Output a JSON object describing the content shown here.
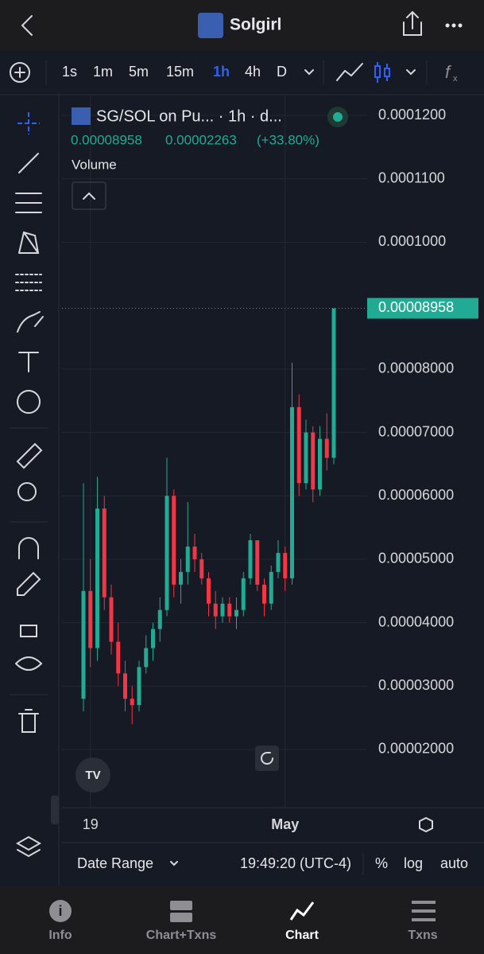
{
  "header": {
    "title": "Solgirl"
  },
  "toolbar": {
    "intervals": [
      "1s",
      "1m",
      "5m",
      "15m",
      "1h",
      "4h",
      "D"
    ]
  },
  "chart_info": {
    "symbol": "SG/SOL on Pu... · 1h · d...",
    "price": "0.00008958",
    "change": "0.00002263",
    "change_pct": "(+33.80%)",
    "study": "Volume"
  },
  "chart_data": {
    "type": "candlestick",
    "x": [
      null,
      "19",
      null,
      null,
      null,
      null,
      null,
      null,
      null,
      null,
      null,
      null,
      null,
      null,
      null,
      null,
      null,
      null,
      null,
      null,
      null,
      null,
      null,
      null,
      null,
      null,
      null,
      null,
      null,
      "May",
      null,
      null,
      null,
      null,
      null,
      null,
      null
    ],
    "open": [
      2.8e-05,
      4.5e-05,
      3.6e-05,
      5.8e-05,
      4.4e-05,
      3.7e-05,
      3.2e-05,
      2.8e-05,
      2.7e-05,
      3.3e-05,
      3.6e-05,
      3.9e-05,
      4.2e-05,
      6e-05,
      4.6e-05,
      4.8e-05,
      5.2e-05,
      5e-05,
      4.7e-05,
      4.3e-05,
      4.1e-05,
      4.3e-05,
      4.1e-05,
      4.2e-05,
      4.7e-05,
      5.3e-05,
      4.6e-05,
      4.3e-05,
      4.8e-05,
      5.1e-05,
      4.7e-05,
      7.4e-05,
      6.2e-05,
      7e-05,
      6.1e-05,
      6.9e-05,
      6.6e-05
    ],
    "high": [
      6.2e-05,
      5e-05,
      6.3e-05,
      6e-05,
      4.6e-05,
      4e-05,
      3.4e-05,
      3e-05,
      3.4e-05,
      3.8e-05,
      4e-05,
      4.4e-05,
      6.6e-05,
      6.1e-05,
      5e-05,
      5.9e-05,
      5.4e-05,
      5.1e-05,
      4.8e-05,
      4.5e-05,
      4.4e-05,
      4.4e-05,
      4.4e-05,
      4.8e-05,
      5.4e-05,
      5.3e-05,
      4.7e-05,
      4.9e-05,
      5.3e-05,
      5.2e-05,
      8.1e-05,
      7.6e-05,
      7.2e-05,
      7.1e-05,
      7.1e-05,
      7.3e-05,
      8.958e-05
    ],
    "low": [
      2.6e-05,
      3.3e-05,
      3.4e-05,
      4.2e-05,
      3.5e-05,
      3e-05,
      2.6e-05,
      2.4e-05,
      2.6e-05,
      3.2e-05,
      3.4e-05,
      3.7e-05,
      4.1e-05,
      4.4e-05,
      4.3e-05,
      4.6e-05,
      4.8e-05,
      4.6e-05,
      4.1e-05,
      3.9e-05,
      4e-05,
      4e-05,
      3.9e-05,
      4.1e-05,
      4.6e-05,
      4.5e-05,
      4.1e-05,
      4.2e-05,
      4.7e-05,
      4.5e-05,
      4.6e-05,
      6e-05,
      6.1e-05,
      5.9e-05,
      6e-05,
      6.4e-05,
      6.5e-05
    ],
    "close": [
      4.5e-05,
      3.6e-05,
      5.8e-05,
      4.4e-05,
      3.7e-05,
      3.2e-05,
      2.8e-05,
      2.7e-05,
      3.3e-05,
      3.6e-05,
      3.9e-05,
      4.2e-05,
      6e-05,
      4.6e-05,
      4.8e-05,
      5.2e-05,
      5e-05,
      4.7e-05,
      4.3e-05,
      4.1e-05,
      4.3e-05,
      4.1e-05,
      4.2e-05,
      4.7e-05,
      5.3e-05,
      4.6e-05,
      4.3e-05,
      4.8e-05,
      5.1e-05,
      4.7e-05,
      7.4e-05,
      6.2e-05,
      7e-05,
      6.1e-05,
      6.9e-05,
      6.6e-05,
      8.958e-05
    ],
    "up_color": "#22ab94",
    "down_color": "#f23645",
    "ylim": [
      1.084e-05,
      0.00012314
    ],
    "yticks": [
      {
        "value": 0.00012,
        "label": "0.0001200"
      },
      {
        "value": 0.00011,
        "label": "0.0001100"
      },
      {
        "value": 0.0001,
        "label": "0.0001000"
      },
      {
        "value": 8e-05,
        "label": "0.00008000"
      },
      {
        "value": 7e-05,
        "label": "0.00007000"
      },
      {
        "value": 6e-05,
        "label": "0.00006000"
      },
      {
        "value": 5e-05,
        "label": "0.00005000"
      },
      {
        "value": 4e-05,
        "label": "0.00004000"
      },
      {
        "value": 3e-05,
        "label": "0.00003000"
      },
      {
        "value": 2e-05,
        "label": "0.00002000"
      }
    ],
    "last_price": {
      "value": 8.958e-05,
      "label": "0.00008958"
    },
    "grid": true
  },
  "footer": {
    "date_range": "Date Range",
    "time": "19:49:20 (UTC-4)",
    "percent": "%",
    "log": "log",
    "auto": "auto"
  },
  "tabs": [
    "Info",
    "Chart+Txns",
    "Chart",
    "Txns"
  ]
}
